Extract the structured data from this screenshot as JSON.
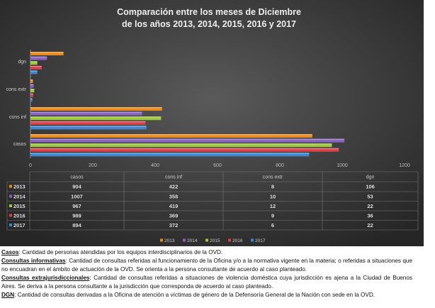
{
  "chart_data": {
    "type": "bar",
    "orientation": "horizontal",
    "title": [
      "Comparación entre los meses de Diciembre",
      "de los años 2013, 2014, 2015, 2016 y 2017"
    ],
    "categories": [
      "casos",
      "cons inf",
      "cons extr",
      "dgn"
    ],
    "xlim": [
      0,
      1200
    ],
    "xticks": [
      0,
      200,
      400,
      600,
      800,
      1000,
      1200
    ],
    "legend_position": "bottom",
    "data_table": true,
    "series": [
      {
        "name": "2013",
        "color": "#ea8a1e",
        "values": [
          904,
          422,
          8,
          106
        ]
      },
      {
        "name": "2014",
        "color": "#8b62c4",
        "values": [
          1007,
          358,
          10,
          53
        ]
      },
      {
        "name": "2015",
        "color": "#9cc83a",
        "values": [
          967,
          419,
          12,
          22
        ]
      },
      {
        "name": "2016",
        "color": "#dc4149",
        "values": [
          989,
          369,
          9,
          36
        ]
      },
      {
        "name": "2017",
        "color": "#3f86d2",
        "values": [
          894,
          372,
          6,
          22
        ]
      }
    ]
  },
  "notes": [
    {
      "term": "Casos",
      "text": ": Cantidad de personas atendidas por los equipos interdisciplinarios de la OVD."
    },
    {
      "term": "Consultas informativas",
      "text": ": Cantidad de consultas referidas al funcionamiento de la Oficina y/o a la normativa vigente en la materia; o referidas a situaciones que no encuadran en el ámbito de actuación de la OVD. Se orienta a la persona consultante de acuerdo al caso planteado."
    },
    {
      "term": "Consultas extrajurisdiccionales",
      "text": ": Cantidad de consultas referidas a situaciones de violencia doméstica cuya jurisdicción es ajena a la Ciudad de Buenos Aires. Se deriva a la persona consultante a la jurisdicción que corresponda de acuerdo al caso planteado."
    },
    {
      "term": "DGN",
      "text": ": Cantidad de consultas derivadas a la Oficina de atención a víctimas de género de la Defensoría General de la Nación con sede en la OVD."
    }
  ]
}
